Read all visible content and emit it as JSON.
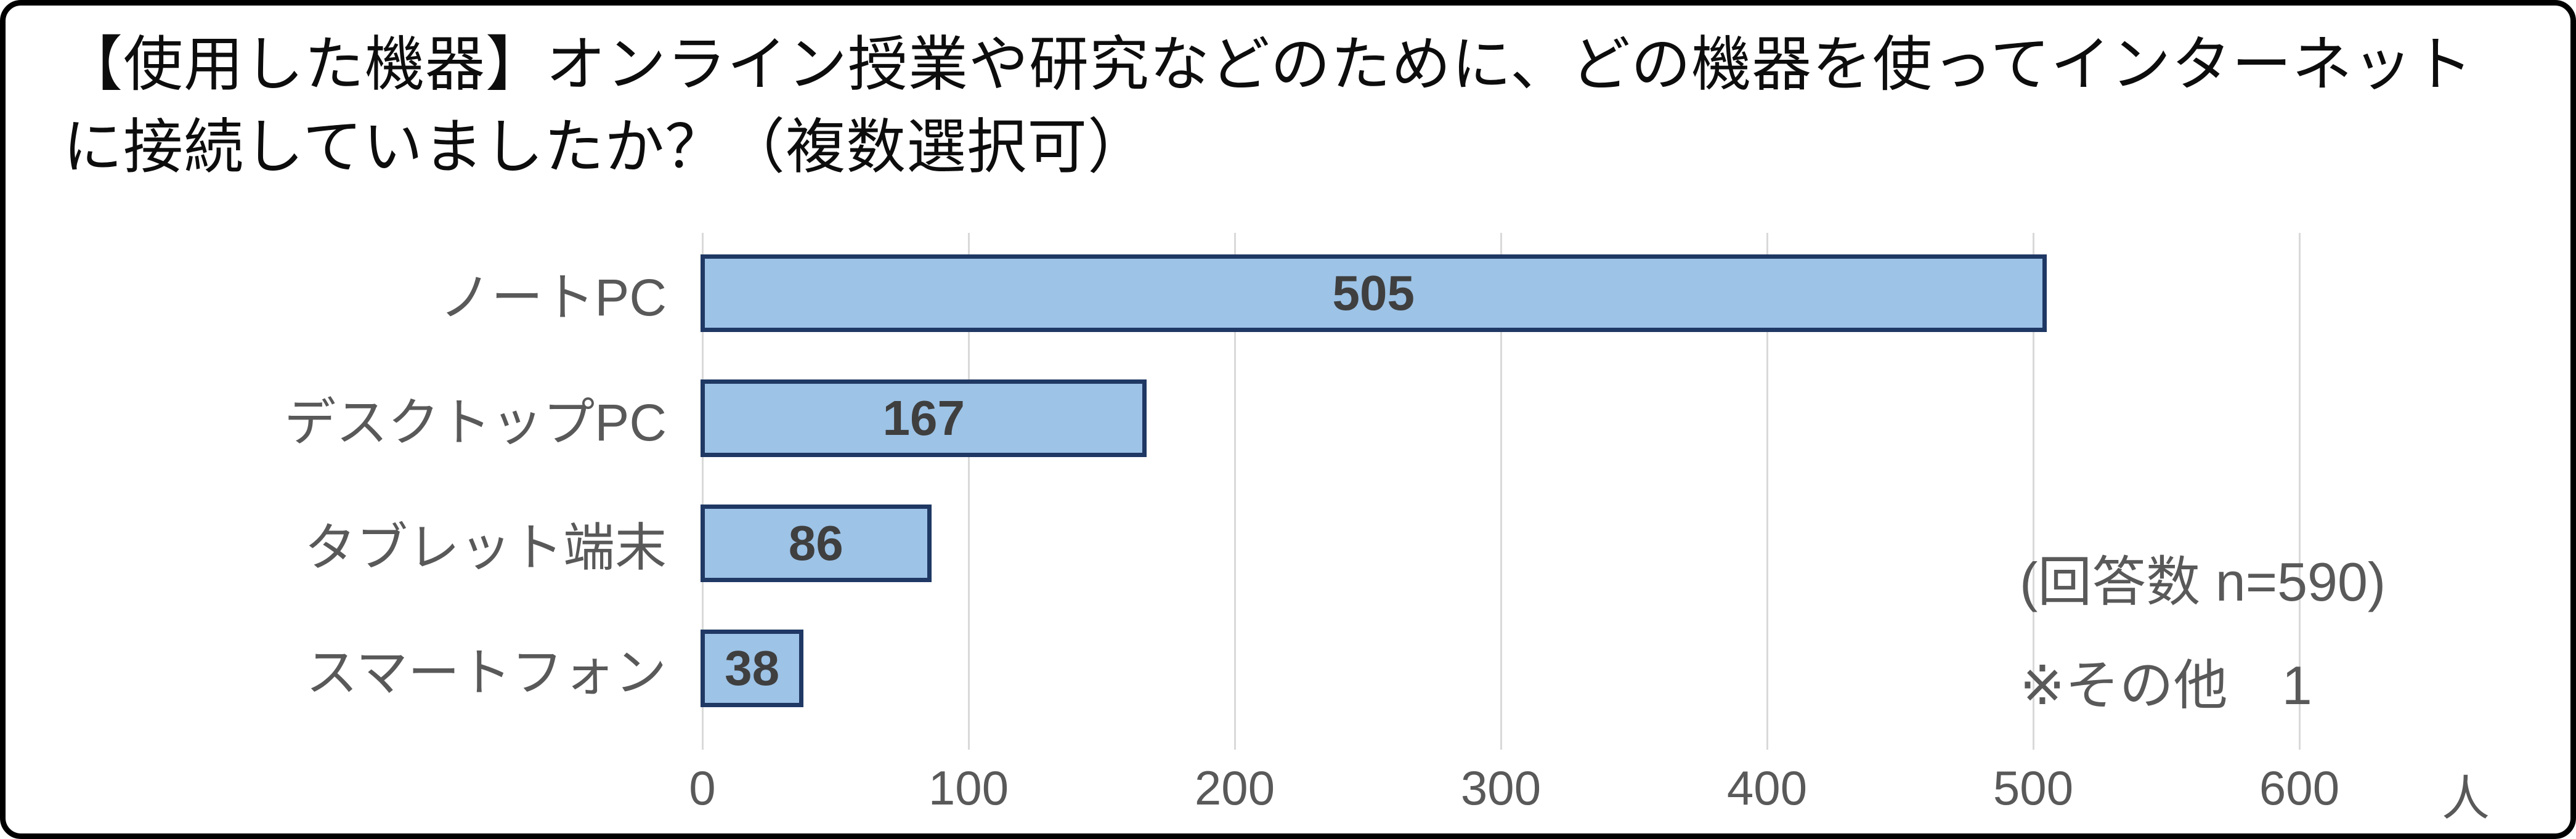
{
  "title_lines": [
    "【使用した機器】オンライン授業や研究などのために、どの機器を使ってインターネット",
    "に接続していましたか？（複数選択可）"
  ],
  "annotation": {
    "line1": "(回答数 n=590)",
    "line2": "※その他　1"
  },
  "chart_data": {
    "type": "bar",
    "orientation": "horizontal",
    "title": "【使用した機器】オンライン授業や研究などのために、どの機器を使ってインターネットに接続していましたか？（複数選択可）",
    "categories": [
      "ノートPC",
      "デスクトップPC",
      "タブレット端末",
      "スマートフォン"
    ],
    "values": [
      505,
      167,
      86,
      38
    ],
    "data_labels": [
      505,
      167,
      86,
      38
    ],
    "xlim": [
      0,
      600
    ],
    "xticks": [
      0,
      100,
      200,
      300,
      400,
      500,
      600
    ],
    "xlabel": "人",
    "grid": true,
    "legend": "none",
    "annotations": [
      "(回答数 n=590)",
      "※その他　1"
    ],
    "colors": {
      "bar_fill": "#9dc3e6",
      "bar_border": "#1f3864",
      "gridline": "#d9d9d9",
      "axis_text": "#595959",
      "value_text": "#3f3f3f",
      "title_text": "#0d0d0d",
      "frame_border": "#000000"
    }
  }
}
